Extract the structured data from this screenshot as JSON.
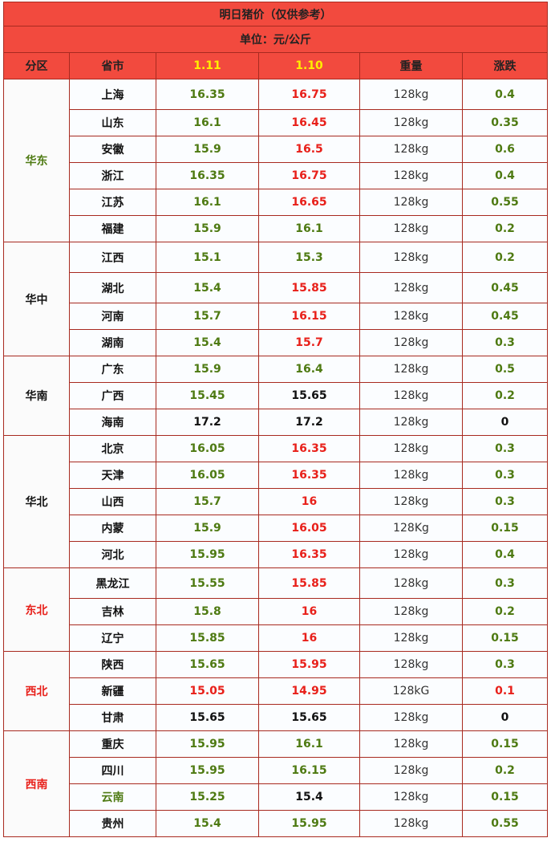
{
  "title": "明日猪价（仅供参考）",
  "unit": "单位：元/公斤",
  "headers": [
    "分区",
    "省市",
    "1.11",
    "1.10",
    "重量",
    "涨跌"
  ],
  "colors": {
    "green": "#4e7a12",
    "red": "#e8201a",
    "black": "#111111",
    "header_bg": "#f24a3e",
    "border": "#a82a20",
    "yellow": "#ffee00"
  },
  "regions": [
    {
      "name": "华东",
      "color": "green",
      "rows": [
        {
          "prov": "上海",
          "p1": "16.35",
          "p1c": "green",
          "p2": "16.75",
          "p2c": "red",
          "w": "128kg",
          "chg": "0.4",
          "chgc": "green"
        },
        {
          "prov": "山东",
          "p1": "16.1",
          "p1c": "green",
          "p2": "16.45",
          "p2c": "red",
          "w": "128kg",
          "chg": "0.35",
          "chgc": "green"
        },
        {
          "prov": "安徽",
          "p1": "15.9",
          "p1c": "green",
          "p2": "16.5",
          "p2c": "red",
          "w": "128kg",
          "chg": "0.6",
          "chgc": "green"
        },
        {
          "prov": "浙江",
          "p1": "16.35",
          "p1c": "green",
          "p2": "16.75",
          "p2c": "red",
          "w": "128kg",
          "chg": "0.4",
          "chgc": "green"
        },
        {
          "prov": "江苏",
          "p1": "16.1",
          "p1c": "green",
          "p2": "16.65",
          "p2c": "red",
          "w": "128kg",
          "chg": "0.55",
          "chgc": "green"
        },
        {
          "prov": "福建",
          "p1": "15.9",
          "p1c": "green",
          "p2": "16.1",
          "p2c": "green",
          "w": "128kg",
          "chg": "0.2",
          "chgc": "green"
        }
      ]
    },
    {
      "name": "华中",
      "color": "black",
      "rows": [
        {
          "prov": "江西",
          "p1": "15.1",
          "p1c": "green",
          "p2": "15.3",
          "p2c": "green",
          "w": "128kg",
          "chg": "0.2",
          "chgc": "green"
        },
        {
          "prov": "湖北",
          "p1": "15.4",
          "p1c": "green",
          "p2": "15.85",
          "p2c": "red",
          "w": "128kg",
          "chg": "0.45",
          "chgc": "green"
        },
        {
          "prov": "河南",
          "p1": "15.7",
          "p1c": "green",
          "p2": "16.15",
          "p2c": "red",
          "w": "128kg",
          "chg": "0.45",
          "chgc": "green"
        },
        {
          "prov": "湖南",
          "p1": "15.4",
          "p1c": "green",
          "p2": "15.7",
          "p2c": "red",
          "w": "128kg",
          "chg": "0.3",
          "chgc": "green"
        }
      ]
    },
    {
      "name": "华南",
      "color": "black",
      "rows": [
        {
          "prov": "广东",
          "p1": "15.9",
          "p1c": "green",
          "p2": "16.4",
          "p2c": "green",
          "w": "128kg",
          "chg": "0.5",
          "chgc": "green"
        },
        {
          "prov": "广西",
          "p1": "15.45",
          "p1c": "green",
          "p2": "15.65",
          "p2c": "black",
          "w": "128kg",
          "chg": "0.2",
          "chgc": "green"
        },
        {
          "prov": "海南",
          "p1": "17.2",
          "p1c": "black",
          "p2": "17.2",
          "p2c": "black",
          "w": "128kg",
          "chg": "0",
          "chgc": "black"
        }
      ]
    },
    {
      "name": "华北",
      "color": "black",
      "rows": [
        {
          "prov": "北京",
          "p1": "16.05",
          "p1c": "green",
          "p2": "16.35",
          "p2c": "red",
          "w": "128kg",
          "chg": "0.3",
          "chgc": "green"
        },
        {
          "prov": "天津",
          "p1": "16.05",
          "p1c": "green",
          "p2": "16.35",
          "p2c": "red",
          "w": "128kg",
          "chg": "0.3",
          "chgc": "green"
        },
        {
          "prov": "山西",
          "p1": "15.7",
          "p1c": "green",
          "p2": "16",
          "p2c": "red",
          "w": "128kg",
          "chg": "0.3",
          "chgc": "green"
        },
        {
          "prov": "内蒙",
          "p1": "15.9",
          "p1c": "green",
          "p2": "16.05",
          "p2c": "red",
          "w": "128Kg",
          "chg": "0.15",
          "chgc": "green"
        },
        {
          "prov": "河北",
          "p1": "15.95",
          "p1c": "green",
          "p2": "16.35",
          "p2c": "red",
          "w": "128kg",
          "chg": "0.4",
          "chgc": "green"
        }
      ]
    },
    {
      "name": "东北",
      "color": "red",
      "rows": [
        {
          "prov": "黑龙江",
          "p1": "15.55",
          "p1c": "green",
          "p2": "15.85",
          "p2c": "red",
          "w": "128kg",
          "chg": "0.3",
          "chgc": "green"
        },
        {
          "prov": "吉林",
          "p1": "15.8",
          "p1c": "green",
          "p2": "16",
          "p2c": "red",
          "w": "128kg",
          "chg": "0.2",
          "chgc": "green"
        },
        {
          "prov": "辽宁",
          "p1": "15.85",
          "p1c": "green",
          "p2": "16",
          "p2c": "red",
          "w": "128kg",
          "chg": "0.15",
          "chgc": "green"
        }
      ]
    },
    {
      "name": "西北",
      "color": "red",
      "rows": [
        {
          "prov": "陕西",
          "p1": "15.65",
          "p1c": "green",
          "p2": "15.95",
          "p2c": "red",
          "w": "128kg",
          "chg": "0.3",
          "chgc": "green"
        },
        {
          "prov": "新疆",
          "p1": "15.05",
          "p1c": "red",
          "p2": "14.95",
          "p2c": "red",
          "w": "128kG",
          "chg": "0.1",
          "chgc": "red"
        },
        {
          "prov": "甘肃",
          "p1": "15.65",
          "p1c": "black",
          "p2": "15.65",
          "p2c": "black",
          "w": "128kg",
          "chg": "0",
          "chgc": "black"
        }
      ]
    },
    {
      "name": "西南",
      "color": "red",
      "rows": [
        {
          "prov": "重庆",
          "p1": "15.95",
          "p1c": "green",
          "p2": "16.1",
          "p2c": "green",
          "w": "128kg",
          "chg": "0.15",
          "chgc": "green"
        },
        {
          "prov": "四川",
          "p1": "15.95",
          "p1c": "green",
          "p2": "16.15",
          "p2c": "green",
          "w": "128kg",
          "chg": "0.2",
          "chgc": "green"
        },
        {
          "prov": "云南",
          "provc": "green",
          "p1": "15.25",
          "p1c": "green",
          "p2": "15.4",
          "p2c": "black",
          "w": "128kg",
          "chg": "0.15",
          "chgc": "green"
        },
        {
          "prov": "贵州",
          "p1": "15.4",
          "p1c": "green",
          "p2": "15.95",
          "p2c": "green",
          "w": "128kg",
          "chg": "0.55",
          "chgc": "green"
        }
      ]
    }
  ]
}
